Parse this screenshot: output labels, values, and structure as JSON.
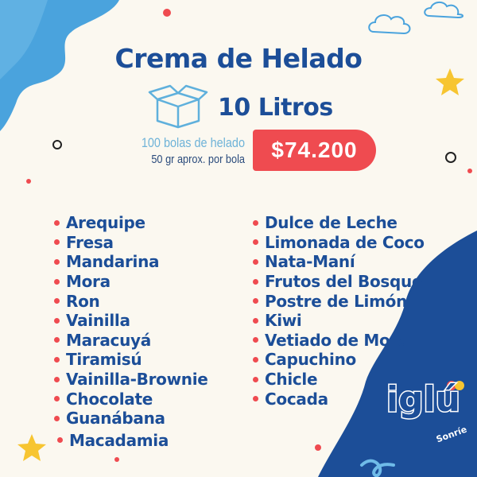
{
  "title": "Crema de Helado",
  "size": "10 Litros",
  "servings": "100 bolas de helado",
  "serving_note": "50 gr aprox. por bola",
  "price": "$74.200",
  "flavors_left": [
    "Arequipe",
    "Fresa",
    "Mandarina",
    "Mora",
    "Ron",
    "Vainilla",
    "Maracuyá",
    "Tiramisú",
    "Vainilla-Brownie",
    "Chocolate",
    "Guanábana",
    "Macadamia"
  ],
  "flavors_right": [
    "Dulce de Leche",
    "Limonada de Coco",
    "Nata-Maní",
    "Frutos del Bosque",
    "Postre de Limón",
    "Kiwi",
    "Vetiado de Mora",
    "Capuchino",
    "Chicle",
    "Cocada"
  ],
  "brand": {
    "name": "iglú",
    "tagline": "Sonríe"
  },
  "colors": {
    "primary": "#1c4e98",
    "light_blue": "#6fb3d8",
    "accent_red": "#ef4b50",
    "background": "#fbf8f0",
    "star": "#f7c531"
  },
  "icons": [
    "box-icon",
    "star-icon",
    "cloud-icon"
  ]
}
